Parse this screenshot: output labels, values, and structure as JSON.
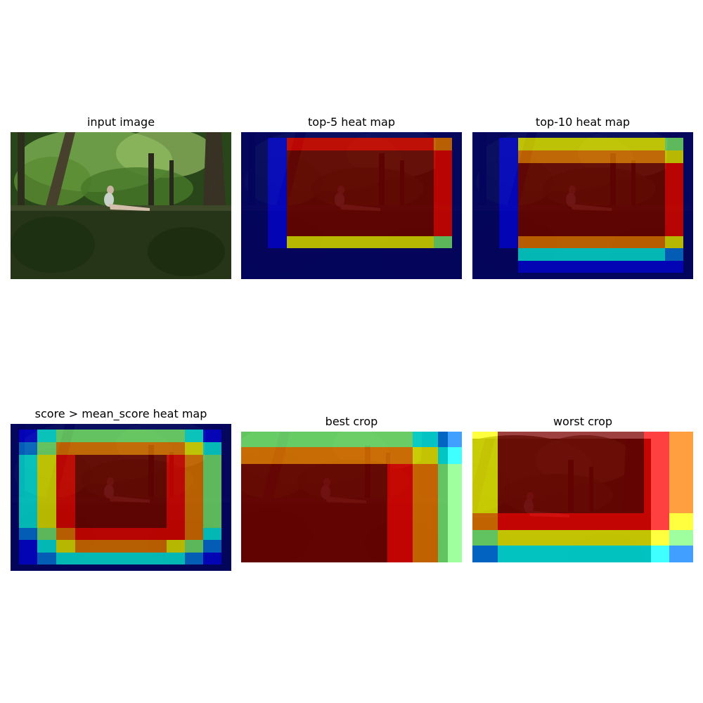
{
  "figure": {
    "panels": [
      {
        "title": "input image",
        "kind": "photo"
      },
      {
        "title": "top-5 heat map",
        "kind": "heatmap"
      },
      {
        "title": "top-10 heat map",
        "kind": "heatmap"
      },
      {
        "title": "score > mean_score heat map",
        "kind": "heatmap"
      },
      {
        "title": "best crop",
        "kind": "crop"
      },
      {
        "title": "worst crop",
        "kind": "crop"
      }
    ]
  },
  "scene": {
    "description_icons": [
      "forest-scene",
      "stone-wall",
      "person-reclining"
    ],
    "colors": {
      "foliage_dark": "#1f3a12",
      "foliage_light": "#6fa83a",
      "wall": "#2b3a1a",
      "trunk": "#3a3426"
    }
  },
  "colormap": {
    "name": "jet",
    "stops": [
      "#00007f",
      "#0000ff",
      "#007fff",
      "#00ffff",
      "#7fff7f",
      "#ffff00",
      "#ff7f00",
      "#ff0000",
      "#7f0000"
    ]
  }
}
